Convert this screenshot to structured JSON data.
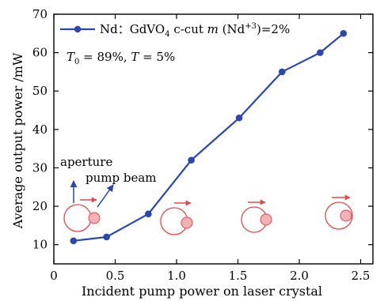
{
  "chart_data": {
    "type": "line",
    "title": "",
    "xlabel": "Incident pump power on laser crystal",
    "ylabel": "Average output power /mW",
    "xlim": [
      0,
      2.6
    ],
    "ylim": [
      5,
      70
    ],
    "x_ticks": [
      0,
      0.5,
      1.0,
      1.5,
      2.0,
      2.5
    ],
    "x_tick_labels": [
      "0",
      "0.5",
      "1.0",
      "1.5",
      "2.0",
      "2.5"
    ],
    "y_ticks": [
      10,
      20,
      30,
      40,
      50,
      60,
      70
    ],
    "y_tick_labels": [
      "10",
      "20",
      "30",
      "40",
      "50",
      "60",
      "70"
    ],
    "grid": false,
    "legend_position": "top-left",
    "series": [
      {
        "name": "Nd：GdVO4 c-cut m (Nd+3)=2%",
        "color": "#2a46b0",
        "x": [
          0.16,
          0.43,
          0.77,
          1.12,
          1.51,
          1.86,
          2.17,
          2.36
        ],
        "y": [
          11,
          12,
          18,
          32,
          43,
          55,
          60,
          65
        ]
      }
    ],
    "legend": {
      "prefix": "Nd：GdVO",
      "subscript": "4",
      "middle": " c-cut ",
      "italic": "m",
      "after_italic": " (Nd",
      "superscript": "+3",
      "suffix": ")=2%"
    },
    "params_line": {
      "t0_symbol": "T",
      "t0_sub": "0",
      "t0_value": " = 89%, ",
      "t_symbol": "T",
      "t_value": " = 5%"
    },
    "annotations": {
      "aperture": "aperture",
      "pump_beam": "pump beam"
    },
    "inset_color": "#e8474a"
  }
}
